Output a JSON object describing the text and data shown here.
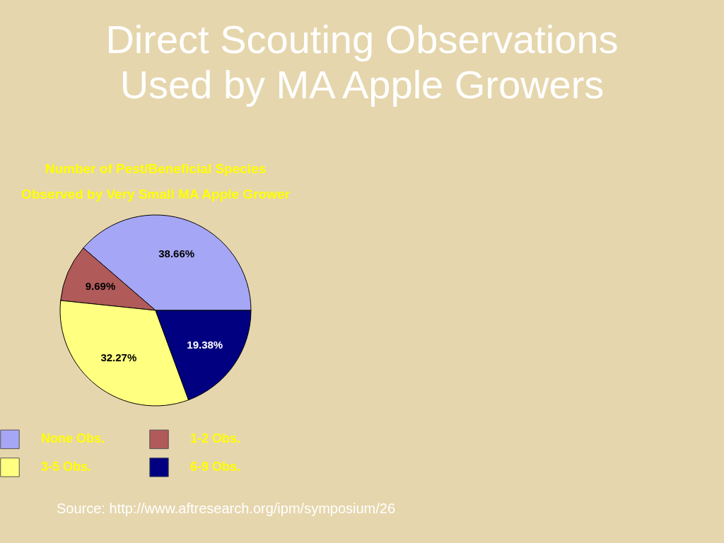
{
  "chart_data": {
    "type": "pie",
    "title": "Direct Scouting Observations Used by MA Apple Growers",
    "subtitle": "Number of Pest/Beneficial Species Observed by Very Small MA Apple Grower",
    "categories": [
      "None Obs.",
      "1-2 Obs.",
      "3-5 Obs.",
      "6-9 Obs."
    ],
    "values": [
      38.66,
      9.69,
      32.27,
      19.38
    ],
    "colors": [
      "#a6a6f6",
      "#b05a5a",
      "#ffff80",
      "#000080"
    ],
    "value_labels": [
      "38.66%",
      "9.69%",
      "32.27%",
      "19.38%"
    ],
    "legend": "bottom",
    "annotations": [
      "Source: http://www.aftresearch.org/ipm/symposium/26"
    ]
  }
}
